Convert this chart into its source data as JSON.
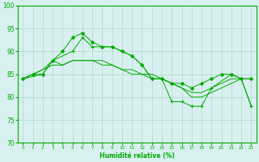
{
  "title": "",
  "xlabel": "Humidité relative (%)",
  "ylabel": "",
  "xlim": [
    -0.5,
    23.5
  ],
  "ylim": [
    70,
    100
  ],
  "yticks": [
    70,
    75,
    80,
    85,
    90,
    95,
    100
  ],
  "xticks": [
    0,
    1,
    2,
    3,
    4,
    5,
    6,
    7,
    8,
    9,
    10,
    11,
    12,
    13,
    14,
    15,
    16,
    17,
    18,
    19,
    20,
    21,
    22,
    23
  ],
  "bg_color": "#d8f0f0",
  "grid_color": "#b0d8cc",
  "line_color": "#00aa00",
  "lines": [
    {
      "x": [
        0,
        1,
        2,
        3,
        4,
        5,
        6,
        7,
        8,
        9,
        10,
        11,
        12,
        13,
        14,
        15,
        16,
        17,
        18,
        19,
        20,
        21,
        22,
        23
      ],
      "y": [
        84,
        85,
        85,
        88,
        90,
        93,
        94,
        92,
        91,
        91,
        90,
        89,
        87,
        84,
        84,
        83,
        83,
        82,
        83,
        84,
        85,
        85,
        84,
        84
      ],
      "marker": "D",
      "markersize": 2.0
    },
    {
      "x": [
        0,
        1,
        2,
        3,
        4,
        5,
        6,
        7,
        8,
        9,
        10,
        11,
        12,
        13,
        14,
        15,
        16,
        17,
        18,
        19,
        20,
        21,
        22,
        23
      ],
      "y": [
        84,
        85,
        86,
        88,
        87,
        88,
        88,
        88,
        88,
        87,
        86,
        86,
        85,
        85,
        84,
        83,
        82,
        81,
        81,
        82,
        83,
        84,
        84,
        84
      ],
      "marker": null,
      "markersize": 0
    },
    {
      "x": [
        0,
        1,
        2,
        3,
        4,
        5,
        6,
        7,
        8,
        9,
        10,
        11,
        12,
        13,
        14,
        15,
        16,
        17,
        18,
        19,
        20,
        21,
        22,
        23
      ],
      "y": [
        84,
        85,
        86,
        87,
        87,
        88,
        88,
        88,
        87,
        87,
        86,
        85,
        85,
        84,
        84,
        83,
        82,
        80,
        80,
        81,
        82,
        83,
        84,
        78
      ],
      "marker": null,
      "markersize": 0
    },
    {
      "x": [
        0,
        2,
        3,
        5,
        6,
        7,
        9,
        10,
        11,
        12,
        13,
        14,
        15,
        16,
        17,
        18,
        19,
        21,
        22,
        23
      ],
      "y": [
        84,
        85,
        88,
        90,
        93,
        91,
        91,
        90,
        89,
        87,
        84,
        84,
        79,
        79,
        78,
        78,
        82,
        85,
        84,
        78
      ],
      "marker": "+",
      "markersize": 3.5
    }
  ]
}
